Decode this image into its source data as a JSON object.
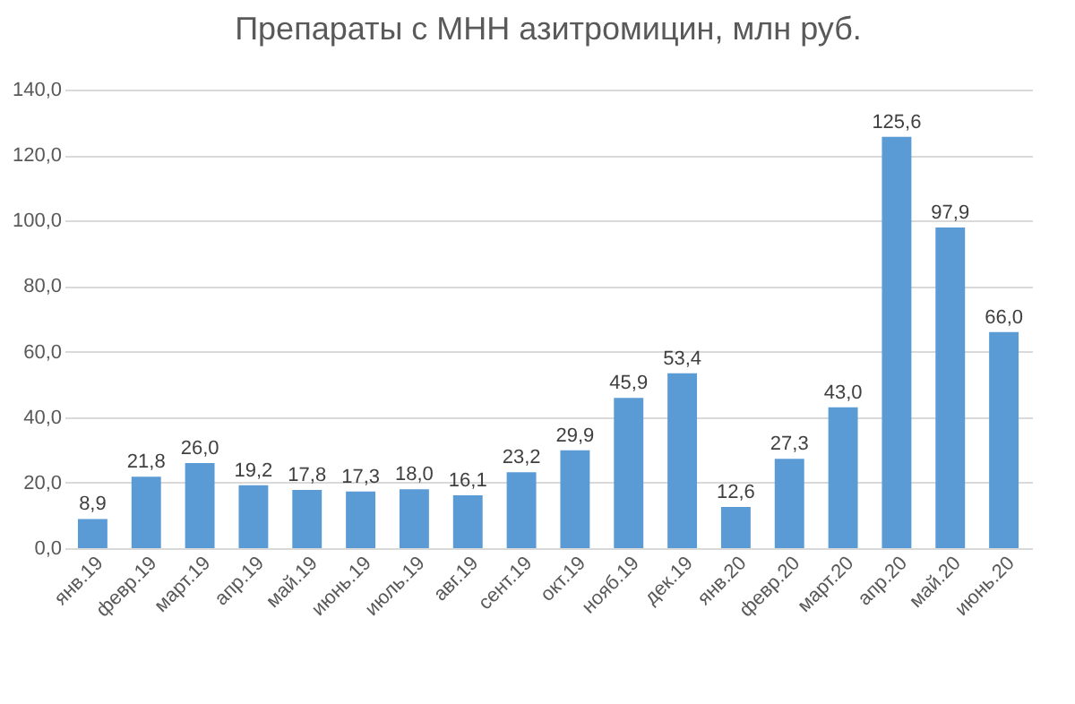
{
  "chart_data": {
    "type": "bar",
    "title": "Препараты с МНН азитромицин, млн руб.",
    "categories": [
      "янв.19",
      "февр.19",
      "март.19",
      "апр.19",
      "май.19",
      "июнь.19",
      "июль.19",
      "авг.19",
      "сент.19",
      "окт.19",
      "нояб.19",
      "дек.19",
      "янв.20",
      "февр.20",
      "март.20",
      "апр.20",
      "май.20",
      "июнь.20"
    ],
    "values": [
      8.9,
      21.8,
      26.0,
      19.2,
      17.8,
      17.3,
      18.0,
      16.1,
      23.2,
      29.9,
      45.9,
      53.4,
      12.6,
      27.3,
      43.0,
      125.6,
      97.9,
      66.0
    ],
    "value_labels": [
      "8,9",
      "21,8",
      "26,0",
      "19,2",
      "17,8",
      "17,3",
      "18,0",
      "16,1",
      "23,2",
      "29,9",
      "45,9",
      "53,4",
      "12,6",
      "27,3",
      "43,0",
      "125,6",
      "97,9",
      "66,0"
    ],
    "color": "#5b9bd5",
    "ylim": [
      0,
      140
    ],
    "yticks": [
      {
        "value": 0,
        "label": "0,0"
      },
      {
        "value": 20,
        "label": "20,0"
      },
      {
        "value": 40,
        "label": "40,0"
      },
      {
        "value": 60,
        "label": "60,0"
      },
      {
        "value": 80,
        "label": "80,0"
      },
      {
        "value": 100,
        "label": "100,0"
      },
      {
        "value": 120,
        "label": "120,0"
      },
      {
        "value": 140,
        "label": "140,0"
      }
    ],
    "grid": "y"
  }
}
